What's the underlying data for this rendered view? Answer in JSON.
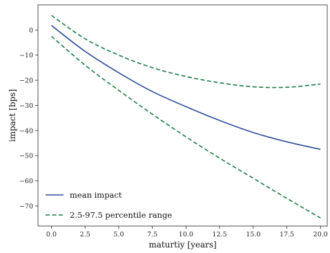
{
  "chart_data": {
    "type": "line",
    "xlabel": "maturtiy [years]",
    "ylabel": "impact [bps]",
    "xlim": [
      -1,
      20.5
    ],
    "ylim": [
      -78,
      10
    ],
    "xticks": [
      0,
      2.5,
      5,
      7.5,
      10,
      12.5,
      15,
      17.5,
      20
    ],
    "xtick_labels": [
      "0.0",
      "2.5",
      "5.0",
      "7.5",
      "10.0",
      "12.5",
      "15.0",
      "17.5",
      "20.0"
    ],
    "yticks": [
      0,
      -10,
      -20,
      -30,
      -40,
      -50,
      -60,
      -70
    ],
    "ytick_labels": [
      "0",
      "−10",
      "−20",
      "−30",
      "−40",
      "−50",
      "−60",
      "−70"
    ],
    "grid": false,
    "legend_position": "bottom-left",
    "series": [
      {
        "name": "mean impact",
        "style": "solid",
        "color": "#2a4d9a",
        "x": [
          0,
          2.5,
          5,
          7.5,
          10,
          12.5,
          15,
          17.5,
          20
        ],
        "y": [
          1.8,
          -8.5,
          -17.0,
          -24.5,
          -30.5,
          -36.0,
          -40.8,
          -44.5,
          -47.5
        ]
      },
      {
        "name": "2.5-97.5 percentile range",
        "style": "dashed",
        "color": "#1a7a45",
        "x": [
          0,
          2.5,
          5,
          7.5,
          10,
          12.5,
          15,
          17.5,
          20
        ],
        "y": [
          5.8,
          -3.5,
          -10.0,
          -15.0,
          -18.5,
          -21.0,
          -22.6,
          -22.8,
          -21.5
        ]
      },
      {
        "name": "",
        "style": "dashed",
        "color": "#1a7a45",
        "x": [
          0,
          2.5,
          5,
          7.5,
          10,
          12.5,
          15,
          17.5,
          20
        ],
        "y": [
          -2.5,
          -14.0,
          -24.0,
          -33.5,
          -42.5,
          -51.0,
          -59.0,
          -67.0,
          -74.8
        ]
      }
    ]
  }
}
